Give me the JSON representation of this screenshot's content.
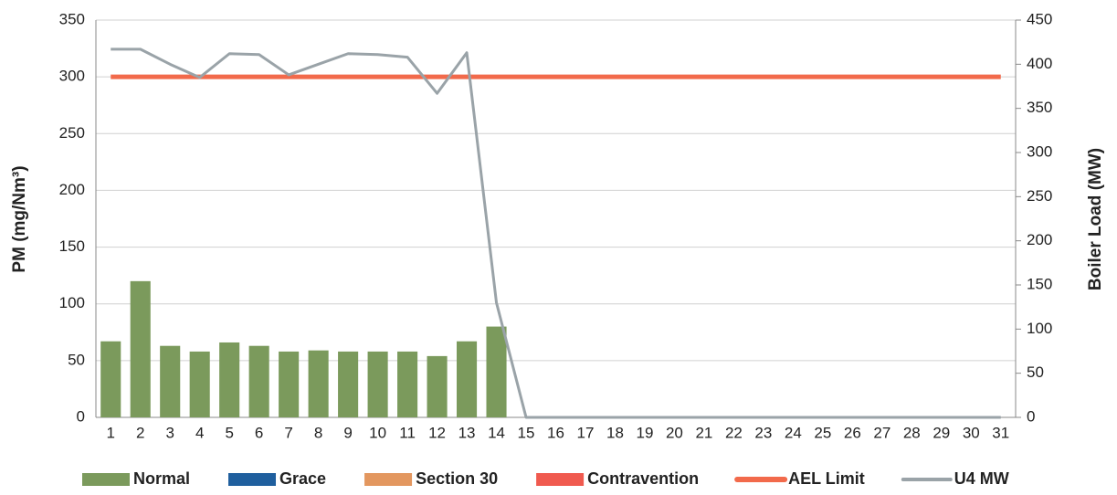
{
  "chart_data": {
    "type": "bar",
    "categories": [
      "1",
      "2",
      "3",
      "4",
      "5",
      "6",
      "7",
      "8",
      "9",
      "10",
      "11",
      "12",
      "13",
      "14",
      "15",
      "16",
      "17",
      "18",
      "19",
      "20",
      "21",
      "22",
      "23",
      "24",
      "25",
      "26",
      "27",
      "28",
      "29",
      "30",
      "31"
    ],
    "ylabel": "PM (mg/Nm³)",
    "y2label": "Boiler Load (MW)",
    "ylim": [
      0,
      350
    ],
    "yticks": [
      0,
      50,
      100,
      150,
      200,
      250,
      300,
      350
    ],
    "y2lim": [
      0,
      450
    ],
    "y2ticks": [
      0,
      50,
      100,
      150,
      200,
      250,
      300,
      350,
      400,
      450
    ],
    "grid": true,
    "legend": "bottom",
    "series": [
      {
        "name": "Normal",
        "type": "bar",
        "color": "#7b9a5c",
        "values": [
          67,
          120,
          63,
          58,
          66,
          63,
          58,
          59,
          58,
          58,
          58,
          54,
          67,
          80,
          null,
          null,
          null,
          null,
          null,
          null,
          null,
          null,
          null,
          null,
          null,
          null,
          null,
          null,
          null,
          null,
          null
        ]
      },
      {
        "name": "Grace",
        "type": "bar",
        "color": "#1f5f9e",
        "values": [
          null,
          null,
          null,
          null,
          null,
          null,
          null,
          null,
          null,
          null,
          null,
          null,
          null,
          null,
          null,
          null,
          null,
          null,
          null,
          null,
          null,
          null,
          null,
          null,
          null,
          null,
          null,
          null,
          null,
          null,
          null
        ]
      },
      {
        "name": "Section 30",
        "type": "bar",
        "color": "#e3975f",
        "values": [
          null,
          null,
          null,
          null,
          null,
          null,
          null,
          null,
          null,
          null,
          null,
          null,
          null,
          null,
          null,
          null,
          null,
          null,
          null,
          null,
          null,
          null,
          null,
          null,
          null,
          null,
          null,
          null,
          null,
          null,
          null
        ]
      },
      {
        "name": "Contravention",
        "type": "bar",
        "color": "#f05a4f",
        "values": [
          null,
          null,
          null,
          null,
          null,
          null,
          null,
          null,
          null,
          null,
          null,
          null,
          null,
          null,
          null,
          null,
          null,
          null,
          null,
          null,
          null,
          null,
          null,
          null,
          null,
          null,
          null,
          null,
          null,
          null,
          null
        ]
      },
      {
        "name": "AEL Limit",
        "type": "line",
        "color": "#f26a4b",
        "values": [
          300,
          300,
          300,
          300,
          300,
          300,
          300,
          300,
          300,
          300,
          300,
          300,
          300,
          300,
          300,
          300,
          300,
          300,
          300,
          300,
          300,
          300,
          300,
          300,
          300,
          300,
          300,
          300,
          300,
          300,
          300
        ]
      },
      {
        "name": "U4 MW",
        "type": "line",
        "axis": "y2",
        "color": "#9aa3a8",
        "values": [
          417,
          417,
          400,
          385,
          412,
          411,
          388,
          400,
          412,
          411,
          408,
          367,
          413,
          130,
          0,
          0,
          0,
          0,
          0,
          0,
          0,
          0,
          0,
          0,
          0,
          0,
          0,
          0,
          0,
          0,
          0
        ]
      }
    ]
  }
}
